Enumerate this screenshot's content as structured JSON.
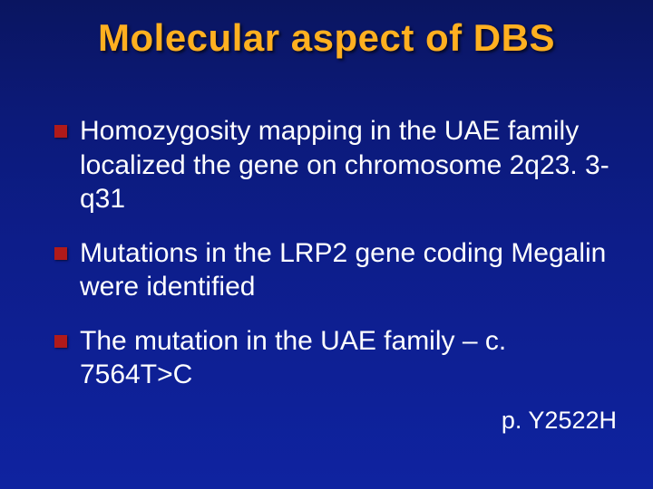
{
  "colors": {
    "title": "#ffb020",
    "bullet_square": "#b01a1a",
    "text": "#ffffff"
  },
  "typography": {
    "title_fontsize": 42,
    "bullet_fontsize": 30,
    "footnote_fontsize": 27,
    "font_family": "Arial Narrow"
  },
  "slide": {
    "title": "Molecular aspect of DBS",
    "bullets": [
      "Homozygosity mapping in the UAE family localized the gene on chromosome 2q23. 3-q31",
      "Mutations in the LRP2 gene coding Megalin were identified",
      "The mutation in the UAE family – c. 7564T>C"
    ],
    "footnote": "p. Y2522H"
  }
}
